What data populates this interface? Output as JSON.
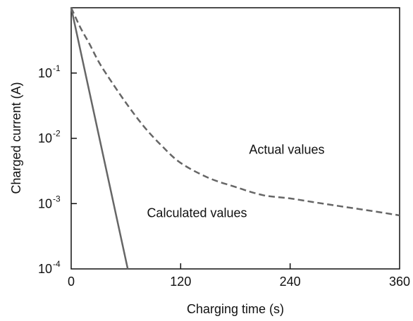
{
  "chart_data": {
    "type": "line",
    "xlabel": "Charging time (s)",
    "ylabel": "Charged current (A)",
    "xlim": [
      0,
      360
    ],
    "ylim": [
      0.0001,
      1
    ],
    "yscale": "log",
    "x_ticks": [
      0,
      120,
      240,
      360
    ],
    "y_ticks": [
      {
        "value": 0.1,
        "base": "10",
        "exp": "-1"
      },
      {
        "value": 0.01,
        "base": "10",
        "exp": "-2"
      },
      {
        "value": 0.001,
        "base": "10",
        "exp": "-3"
      },
      {
        "value": 0.0001,
        "base": "10",
        "exp": "-4"
      }
    ],
    "grid": false,
    "series": [
      {
        "name": "Calculated values",
        "style": "solid",
        "color": "#666666",
        "x": [
          0,
          62
        ],
        "y": [
          1.0,
          0.0001
        ]
      },
      {
        "name": "Actual values",
        "style": "dashed",
        "color": "#666666",
        "x": [
          0,
          10,
          20,
          30,
          40,
          60,
          80,
          100,
          120,
          150,
          180,
          210,
          240,
          270,
          300,
          330,
          360
        ],
        "y": [
          1.0,
          0.5,
          0.28,
          0.15,
          0.09,
          0.035,
          0.015,
          0.0075,
          0.0042,
          0.0025,
          0.0018,
          0.00135,
          0.0012,
          0.00103,
          0.00089,
          0.00077,
          0.00066
        ]
      }
    ],
    "annotations": [
      {
        "text": "Actual values",
        "x": 195,
        "y": 0.0058
      },
      {
        "text": "Calculated values",
        "x": 83,
        "y": 0.00062
      }
    ]
  }
}
